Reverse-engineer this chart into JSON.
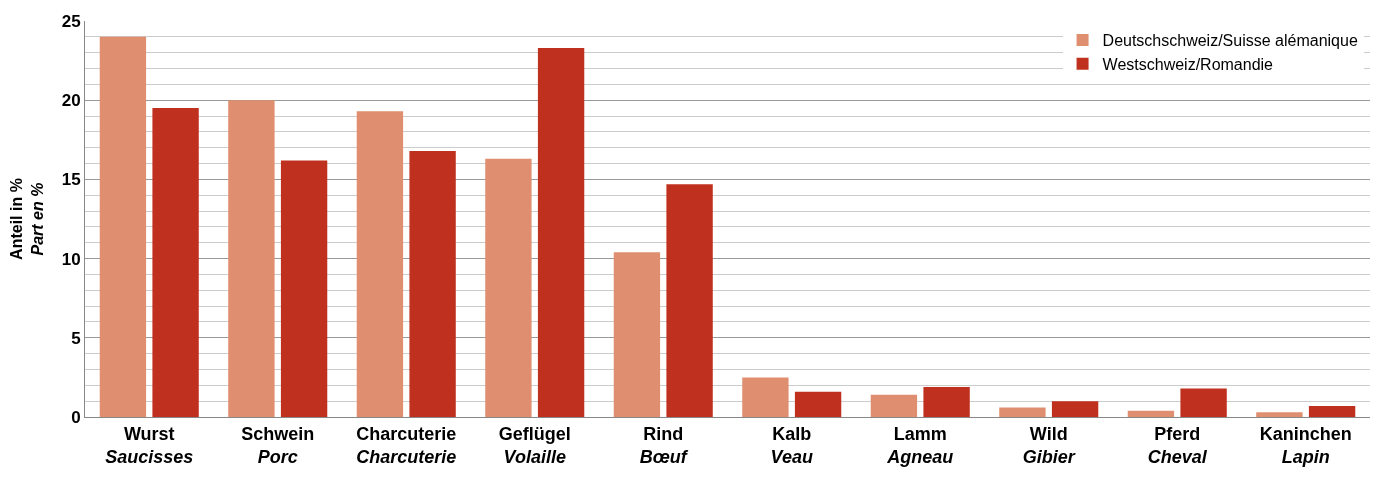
{
  "chart_data": {
    "type": "bar",
    "ylabel": "Anteil in %\nPart en %",
    "categories": [
      "Wurst\nSaucisses",
      "Schwein\nPorc",
      "Charcuterie\nCharcuterie",
      "Geflügel\nVolaille",
      "Rind\nBœuf",
      "Kalb\nVeau",
      "Lamm\nAgneau",
      "Wild\nGibier",
      "Pferd\nCheval",
      "Kaninchen\nLapin"
    ],
    "series": [
      {
        "name": "Deutschschweiz/Suisse alémanique",
        "color": "#df8f70",
        "values": [
          24.0,
          20.0,
          19.3,
          16.3,
          10.4,
          2.5,
          1.4,
          0.6,
          0.4,
          0.3
        ]
      },
      {
        "name": "Westschweiz/Romandie",
        "color": "#c0301f",
        "values": [
          19.5,
          16.2,
          16.8,
          23.3,
          14.7,
          1.6,
          1.9,
          1.0,
          1.8,
          0.7
        ]
      }
    ],
    "ylim": [
      0,
      25
    ],
    "yticks": [
      0,
      5,
      10,
      15,
      20,
      25
    ],
    "grid": "y",
    "legend": "top right"
  }
}
